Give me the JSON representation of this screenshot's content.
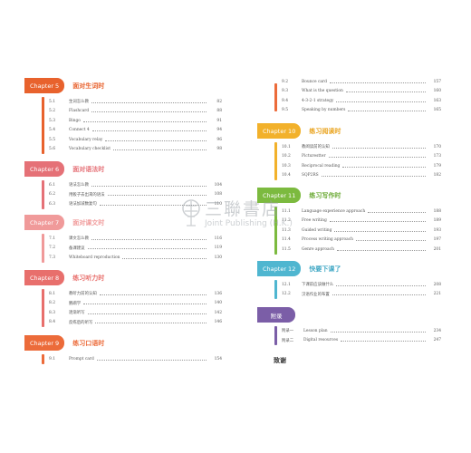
{
  "colors": {
    "ch5": "#e8622d",
    "ch6": "#e57177",
    "ch7": "#f09a9a",
    "ch8": "#e86f6c",
    "ch9": "#ec6b3a",
    "ch10": "#f2b12b",
    "ch11": "#7cba3f",
    "ch12": "#4fb6d0",
    "appendix": "#7b5ea7",
    "ch5_title": "#e8622d",
    "ch6_title": "#e57177",
    "ch7_title": "#f09a9a",
    "ch8_title": "#e86f6c",
    "ch9_title": "#ec6b3a",
    "ch10_title": "#e9a21b",
    "ch11_title": "#6aa933",
    "ch12_title": "#3fa7c4"
  },
  "chapters": {
    "ch5": {
      "label": "Chapter 5",
      "title": "面对生词时",
      "items": [
        {
          "num": "5.1",
          "title": "生词怎么教",
          "page": "82"
        },
        {
          "num": "5.2",
          "title": "Flashcard",
          "page": "88"
        },
        {
          "num": "5.3",
          "title": "Bingo",
          "page": "91"
        },
        {
          "num": "5.4",
          "title": "Connect 4",
          "page": "94"
        },
        {
          "num": "5.5",
          "title": "Vocabulary relay",
          "page": "96"
        },
        {
          "num": "5.6",
          "title": "Vocabulary checklist",
          "page": "98"
        }
      ]
    },
    "ch6": {
      "label": "Chapter 6",
      "title": "面对语法时",
      "items": [
        {
          "num": "6.1",
          "title": "语法怎么教",
          "page": "104"
        },
        {
          "num": "6.2",
          "title": "用骰子去出来的语法",
          "page": "108"
        },
        {
          "num": "6.3",
          "title": "语法加减数复句",
          "page": "110"
        }
      ]
    },
    "ch7": {
      "label": "Chapter 7",
      "title": "面对课文时",
      "items": [
        {
          "num": "7.1",
          "title": "课文怎么教",
          "page": "116"
        },
        {
          "num": "7.2",
          "title": "备课建议",
          "page": "119"
        },
        {
          "num": "7.3",
          "title": "Whiteboard reproduction",
          "page": "130"
        }
      ]
    },
    "ch8": {
      "label": "Chapter 8",
      "title": "练习听力时",
      "items": [
        {
          "num": "8.1",
          "title": "教听力前的认知",
          "page": "136"
        },
        {
          "num": "8.2",
          "title": "鹦鹉学",
          "page": "140"
        },
        {
          "num": "8.3",
          "title": "逐渐听写",
          "page": "142"
        },
        {
          "num": "8.4",
          "title": "反练后的听写",
          "page": "146"
        }
      ]
    },
    "ch9": {
      "label": "Chapter 9",
      "title": "练习口语时",
      "items": [
        {
          "num": "9.1",
          "title": "Prompt card",
          "page": "154"
        }
      ]
    },
    "ch9cont": {
      "items": [
        {
          "num": "9.2",
          "title": "Bounce card",
          "page": "157"
        },
        {
          "num": "9.3",
          "title": "What is the question",
          "page": "160"
        },
        {
          "num": "9.4",
          "title": "4-3-2-1 strategy",
          "page": "163"
        },
        {
          "num": "9.5",
          "title": "Speaking by numbers",
          "page": "165"
        }
      ]
    },
    "ch10": {
      "label": "Chapter 10",
      "title": "练习阅读时",
      "items": [
        {
          "num": "10.1",
          "title": "教阅读前的认知",
          "page": "170"
        },
        {
          "num": "10.2",
          "title": "Picturestter",
          "page": "173"
        },
        {
          "num": "10.3",
          "title": "Reciprocal reading",
          "page": "179"
        },
        {
          "num": "10.4",
          "title": "SQP2RS",
          "page": "182"
        }
      ]
    },
    "ch11": {
      "label": "Chapter 11",
      "title": "练习写作时",
      "items": [
        {
          "num": "11.1",
          "title": "Language experience approach",
          "page": "188"
        },
        {
          "num": "11.2",
          "title": "Free writing",
          "page": "189"
        },
        {
          "num": "11.3",
          "title": "Guided writing",
          "page": "193"
        },
        {
          "num": "11.4",
          "title": "Process writing approach",
          "page": "197"
        },
        {
          "num": "11.5",
          "title": "Genre approach",
          "page": "201"
        }
      ]
    },
    "ch12": {
      "label": "Chapter 12",
      "title": "快要下课了",
      "items": [
        {
          "num": "12.1",
          "title": "下课前应该做什么",
          "page": "208"
        },
        {
          "num": "12.2",
          "title": "汉语作业的布置",
          "page": "221"
        }
      ]
    },
    "appendix": {
      "label": "附录",
      "items": [
        {
          "num": "附录一",
          "title": "Lesson plan",
          "page": "234"
        },
        {
          "num": "附录二",
          "title": "Digital resources",
          "page": "247"
        }
      ]
    }
  },
  "acknowledgements": "致谢",
  "watermark": {
    "zh": "三聯書店",
    "en": "Joint Publishing (H.K.)"
  }
}
